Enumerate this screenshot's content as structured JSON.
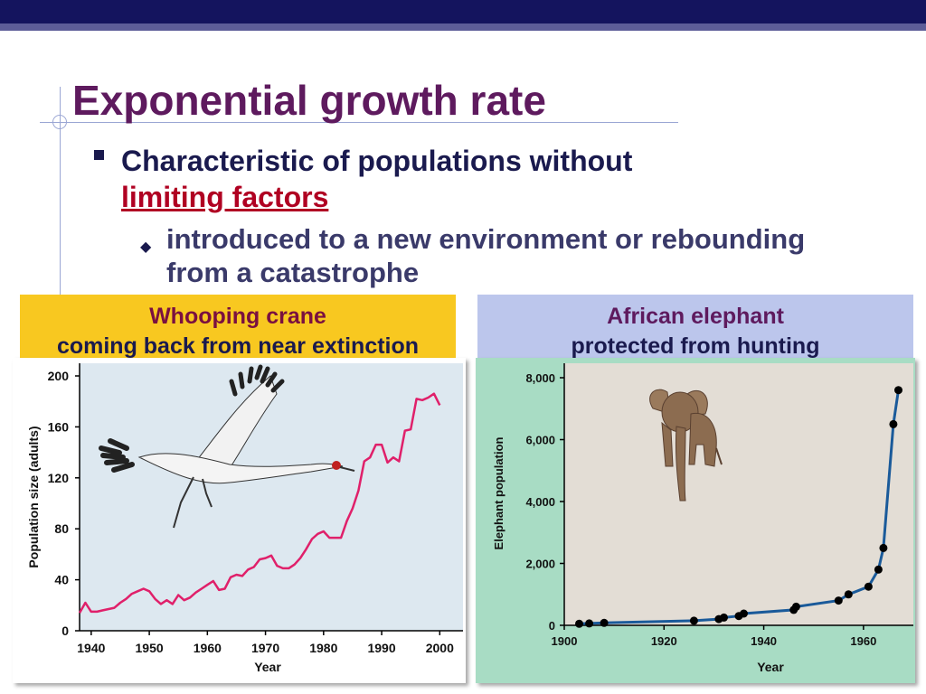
{
  "slide": {
    "title": "Exponential growth rate",
    "bullet1_text": "Characteristic of populations without",
    "bullet1_link": "limiting factors",
    "bullet2_line1": "introduced to a new environment or rebounding",
    "bullet2_line2": "from a catastrophe"
  },
  "captions": {
    "left_title": "Whooping crane",
    "left_subtitle": "coming back from near extinction",
    "right_title": "African elephant",
    "right_subtitle": "protected from hunting"
  },
  "colors": {
    "title": "#5e1a5e",
    "crane_line": "#e0206a",
    "elephant_line": "#1a5a9a",
    "left_caption_bg": "#f8c820",
    "right_caption_bg": "#bcc6ec",
    "left_plot_bg": "#dde8f0",
    "right_plot_bg": "#e3ddd5",
    "right_frame_bg": "#a8dcc4"
  },
  "chart_data": [
    {
      "type": "line",
      "xlabel": "Year",
      "ylabel": "Population size (adults)",
      "xlim": [
        1938,
        2004
      ],
      "ylim": [
        0,
        200
      ],
      "xticks": [
        "1940",
        "1950",
        "1960",
        "1970",
        "1980",
        "1990",
        "2000"
      ],
      "yticks": [
        "0",
        "40",
        "80",
        "120",
        "160",
        "200"
      ],
      "series": [
        {
          "x": [
            1938,
            1939,
            1940,
            1941,
            1942,
            1944,
            1945,
            1946,
            1947,
            1948,
            1949,
            1950,
            1951,
            1952,
            1953,
            1954,
            1955,
            1956,
            1957,
            1958,
            1959,
            1960,
            1961,
            1962,
            1963,
            1964,
            1965,
            1966,
            1967,
            1968,
            1969,
            1970,
            1971,
            1972,
            1973,
            1974,
            1975,
            1976,
            1977,
            1978,
            1979,
            1980,
            1981,
            1982,
            1983,
            1984,
            1985,
            1986,
            1987,
            1988,
            1989,
            1990,
            1991,
            1992,
            1993,
            1994,
            1995,
            1996,
            1997,
            1998,
            1999,
            2000
          ],
          "values": [
            14,
            22,
            15,
            15,
            16,
            18,
            22,
            25,
            29,
            31,
            33,
            31,
            25,
            21,
            24,
            21,
            28,
            24,
            26,
            30,
            33,
            36,
            39,
            32,
            33,
            42,
            44,
            43,
            48,
            50,
            56,
            57,
            59,
            51,
            49,
            49,
            52,
            57,
            64,
            72,
            76,
            78,
            73,
            73,
            73,
            86,
            96,
            110,
            133,
            136,
            146,
            146,
            132,
            136,
            133,
            157,
            158,
            182,
            181,
            183,
            186,
            177
          ]
        }
      ]
    },
    {
      "type": "scatter",
      "xlabel": "Year",
      "ylabel": "Elephant population",
      "xlim": [
        1900,
        1970
      ],
      "ylim": [
        0,
        8000
      ],
      "xticks": [
        "1900",
        "1920",
        "1940",
        "1960"
      ],
      "yticks": [
        "0",
        "2,000",
        "4,000",
        "6,000",
        "8,000"
      ],
      "series": [
        {
          "x": [
            1903,
            1905,
            1908,
            1926,
            1931,
            1932,
            1935,
            1936,
            1946,
            1946.5,
            1955,
            1957,
            1961,
            1963,
            1964,
            1966,
            1967
          ],
          "values": [
            50,
            60,
            80,
            150,
            200,
            250,
            300,
            380,
            500,
            600,
            800,
            1000,
            1250,
            1800,
            2500,
            6500,
            7600
          ]
        }
      ]
    }
  ]
}
